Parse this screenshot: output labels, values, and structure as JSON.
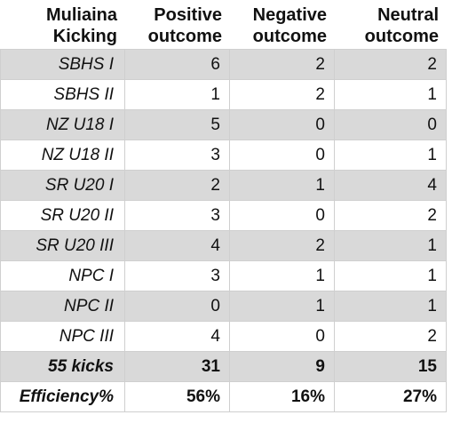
{
  "header": {
    "col0": [
      "Muliaina",
      "Kicking"
    ],
    "col1": [
      "Positive",
      "outcome"
    ],
    "col2": [
      "Negative",
      "outcome"
    ],
    "col3": [
      "Neutral",
      "outcome"
    ]
  },
  "rows": [
    {
      "label": "SBHS I",
      "positive": "6",
      "negative": "2",
      "neutral": "2",
      "shaded": true
    },
    {
      "label": "SBHS II",
      "positive": "1",
      "negative": "2",
      "neutral": "1",
      "shaded": false
    },
    {
      "label": "NZ U18 I",
      "positive": "5",
      "negative": "0",
      "neutral": "0",
      "shaded": true
    },
    {
      "label": "NZ U18 II",
      "positive": "3",
      "negative": "0",
      "neutral": "1",
      "shaded": false
    },
    {
      "label": "SR U20 I",
      "positive": "2",
      "negative": "1",
      "neutral": "4",
      "shaded": true
    },
    {
      "label": "SR U20 II",
      "positive": "3",
      "negative": "0",
      "neutral": "2",
      "shaded": false
    },
    {
      "label": "SR U20 III",
      "positive": "4",
      "negative": "2",
      "neutral": "1",
      "shaded": true
    },
    {
      "label": "NPC I",
      "positive": "3",
      "negative": "1",
      "neutral": "1",
      "shaded": false
    },
    {
      "label": "NPC II",
      "positive": "0",
      "negative": "1",
      "neutral": "1",
      "shaded": true
    },
    {
      "label": "NPC III",
      "positive": "4",
      "negative": "0",
      "neutral": "2",
      "shaded": false
    }
  ],
  "totals": {
    "label": "55 kicks",
    "positive": "31",
    "negative": "9",
    "neutral": "15"
  },
  "efficiency": {
    "label": "Efficiency%",
    "positive": "56%",
    "negative": "16%",
    "neutral": "27%"
  },
  "colors": {
    "shade": "#d9d9d9",
    "border": "#cfcfcf"
  }
}
